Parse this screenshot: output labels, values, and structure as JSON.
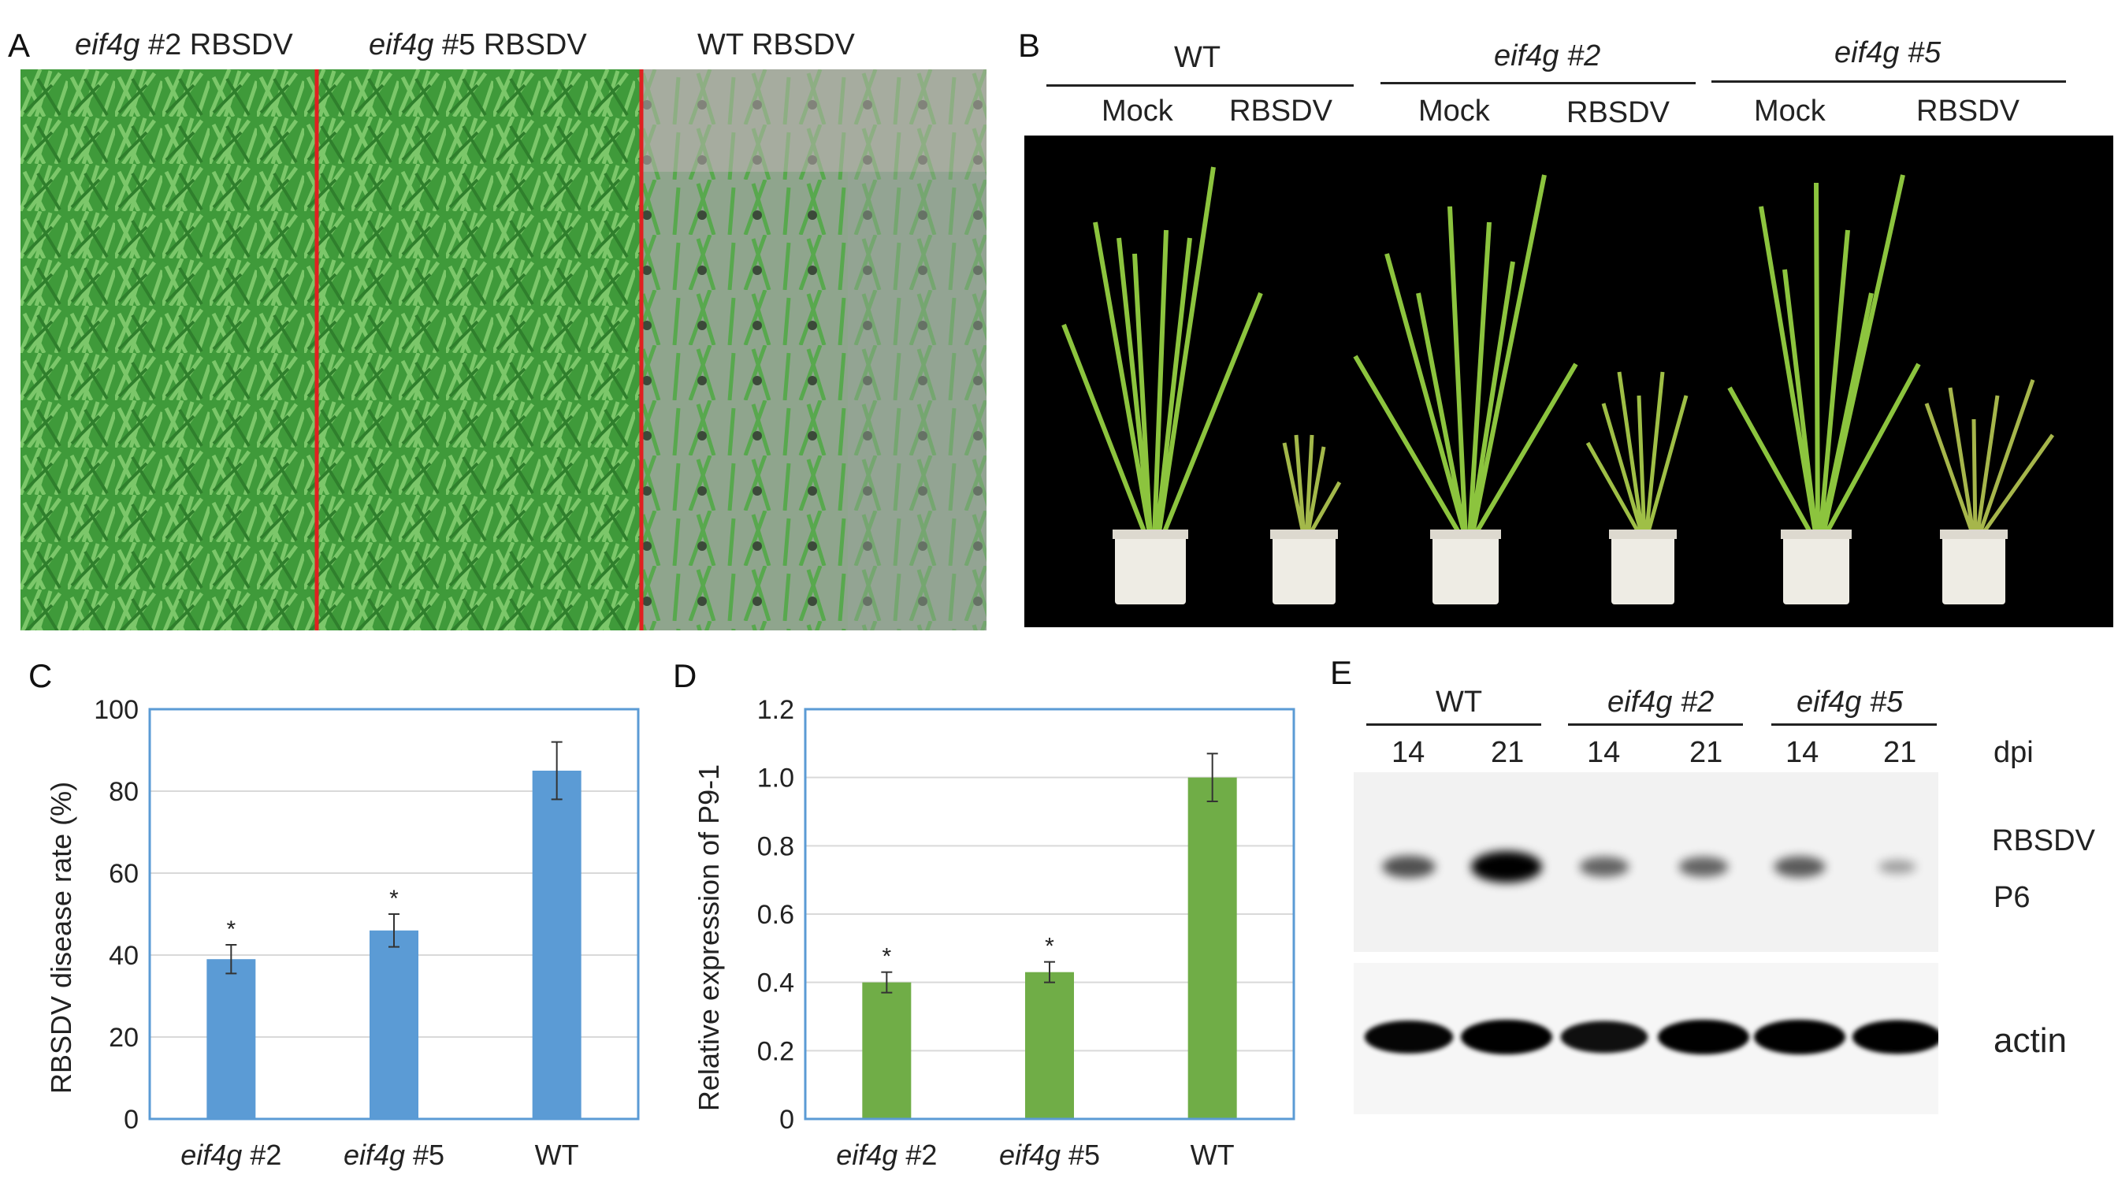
{
  "panels": {
    "A": {
      "letter": "A",
      "labels": [
        {
          "genotype": "eif4g",
          "suffix": " #2 RBSDV"
        },
        {
          "genotype": "eif4g",
          "suffix": " #5 RBSDV"
        },
        {
          "genotype": "",
          "suffix": "WT RBSDV"
        }
      ]
    },
    "B": {
      "letter": "B",
      "groups": [
        {
          "name": "WT",
          "italic": false,
          "sub": [
            "Mock",
            "RBSDV"
          ]
        },
        {
          "name": "eif4g",
          "suffix": " #2",
          "italic": true,
          "sub": [
            "Mock",
            "RBSDV"
          ]
        },
        {
          "name": "eif4g",
          "suffix": " #5",
          "italic": true,
          "sub": [
            "Mock",
            "RBSDV"
          ]
        }
      ]
    },
    "C": {
      "letter": "C"
    },
    "D": {
      "letter": "D"
    },
    "E": {
      "letter": "E",
      "groups": [
        {
          "name": "WT",
          "italic": false
        },
        {
          "name": "eif4g #2",
          "italic": true
        },
        {
          "name": "eif4g #5",
          "italic": true
        }
      ],
      "timepoints": [
        "14",
        "21",
        "14",
        "21",
        "14",
        "21"
      ],
      "unit": "dpi",
      "band_labels": {
        "rbsdv": "RBSDV",
        "p6": "P6",
        "actin": "actin"
      },
      "p6_intensity": [
        0.55,
        1.0,
        0.45,
        0.45,
        0.5,
        0.15
      ],
      "actin_intensity": [
        0.9,
        1.0,
        0.85,
        1.0,
        1.0,
        0.95
      ]
    }
  },
  "chart_data": [
    {
      "type": "bar",
      "panel": "C",
      "categories": [
        "eif4g #2",
        "eif4g #5",
        "WT"
      ],
      "values": [
        39,
        46,
        85
      ],
      "errors": [
        3.5,
        4,
        7
      ],
      "significance": [
        "*",
        "*",
        ""
      ],
      "ylabel": "RBSDV disease rate (%)",
      "xlabel": "",
      "ylim": [
        0,
        100
      ],
      "yticks": [
        0,
        20,
        40,
        60,
        80,
        100
      ],
      "color": "#5b9bd5",
      "frame_color": "#5b9bd5",
      "grid": true
    },
    {
      "type": "bar",
      "panel": "D",
      "categories": [
        "eif4g #2",
        "eif4g #5",
        "WT"
      ],
      "values": [
        0.4,
        0.43,
        1.0
      ],
      "errors": [
        0.03,
        0.03,
        0.07
      ],
      "significance": [
        "*",
        "*",
        ""
      ],
      "ylabel": "Relative expression of P9-1",
      "xlabel": "",
      "ylim": [
        0,
        1.2
      ],
      "yticks": [
        "0",
        "0.2",
        "0.4",
        "0.6",
        "0.8",
        "1.0",
        "1.2"
      ],
      "color": "#70ad47",
      "frame_color": "#5b9bd5",
      "grid": true
    }
  ]
}
